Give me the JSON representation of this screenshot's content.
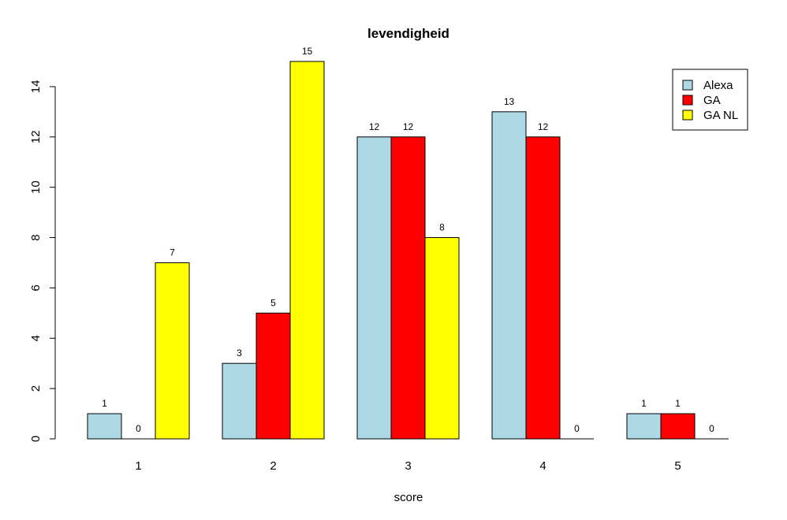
{
  "chart_data": {
    "type": "bar",
    "title": "levendigheid",
    "xlabel": "score",
    "ylabel": "",
    "categories": [
      "1",
      "2",
      "3",
      "4",
      "5"
    ],
    "series": [
      {
        "name": "Alexa",
        "color": "#add8e6",
        "values": [
          1,
          3,
          12,
          13,
          1
        ]
      },
      {
        "name": "GA",
        "color": "#ff0000",
        "values": [
          0,
          5,
          12,
          12,
          1
        ]
      },
      {
        "name": "GA NL",
        "color": "#ffff00",
        "values": [
          7,
          15,
          8,
          0,
          0
        ]
      }
    ],
    "ylim": [
      0,
      15
    ],
    "yticks": [
      0,
      2,
      4,
      6,
      8,
      10,
      12,
      14
    ],
    "grid": false,
    "legend_position": "top-right",
    "data_labels": true
  }
}
